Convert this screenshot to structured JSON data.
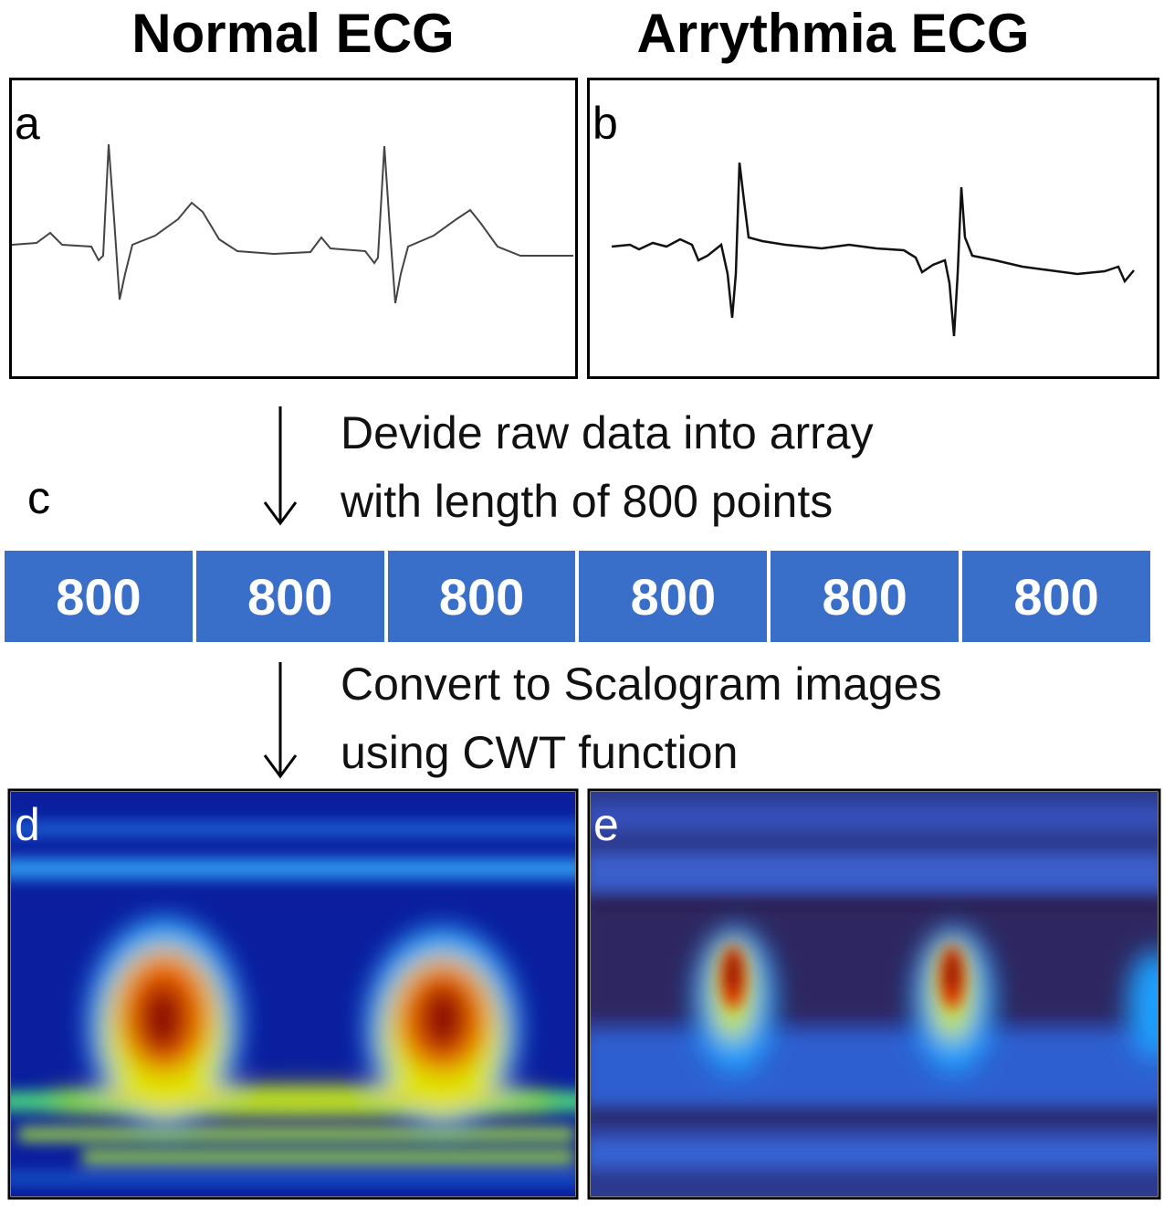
{
  "titles": {
    "normal": "Normal ECG",
    "arrhythmia": "Arrythmia ECG"
  },
  "panels": {
    "a": "a",
    "b": "b",
    "c": "c",
    "d": "d",
    "e": "e"
  },
  "steps": {
    "divide": [
      "Devide raw data into array",
      "with length of 800 points"
    ],
    "convert": [
      "Convert to Scalogram images",
      "using CWT function"
    ]
  },
  "array_cells": [
    "800",
    "800",
    "800",
    "800",
    "800",
    "800"
  ],
  "colors": {
    "array_blue": "#3a6fc9",
    "scalogram_bg_normal": "#0a1e9e",
    "scalogram_bg_arrhythmia": "#2c3a8f"
  },
  "icons": [
    "arrow-down-icon",
    "arrow-down-icon"
  ]
}
